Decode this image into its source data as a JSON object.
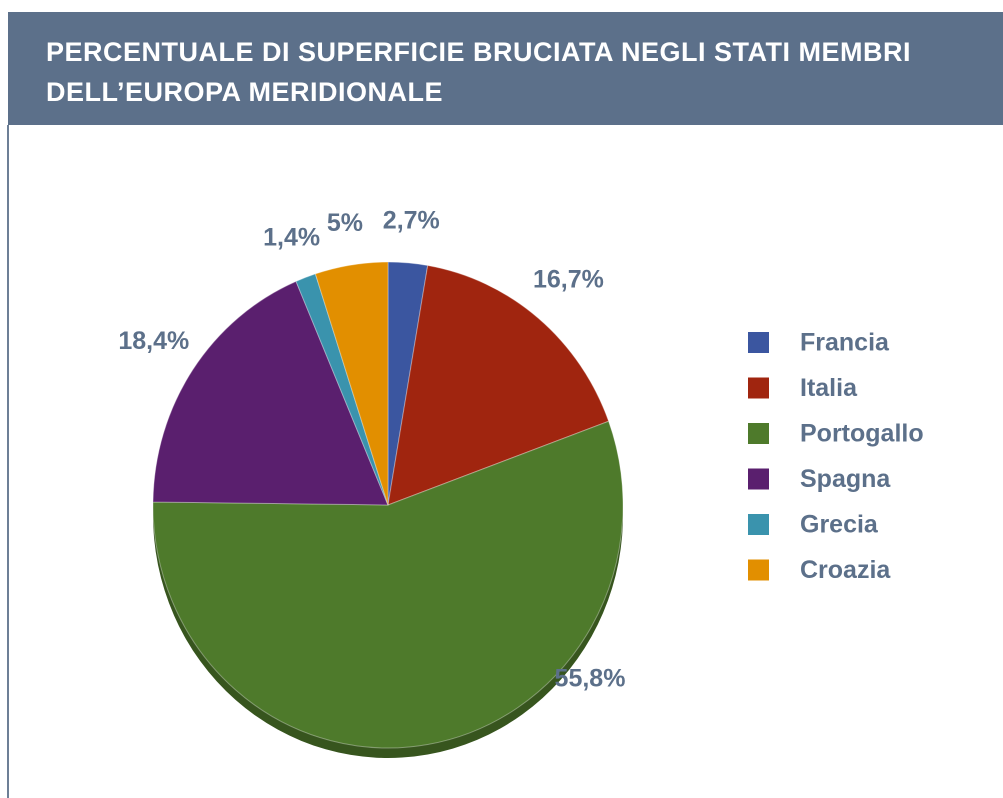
{
  "chart_data": {
    "type": "pie",
    "title": "PERCENTUALE DI SUPERFICIE BRUCIATA NEGLI STATI MEMBRI DELL’EUROPA MERIDIONALE",
    "categories": [
      "Francia",
      "Italia",
      "Portogallo",
      "Spagna",
      "Grecia",
      "Croazia"
    ],
    "values": [
      2.7,
      16.7,
      55.8,
      18.4,
      1.4,
      5
    ],
    "value_labels": [
      "2,7%",
      "16,7%",
      "55,8%",
      "18,4%",
      "1,4%",
      "5%"
    ],
    "colors": [
      "#3b56a0",
      "#a0250f",
      "#4e7a2b",
      "#5a1f6e",
      "#3a93ad",
      "#e28f00"
    ],
    "legend": "right"
  }
}
